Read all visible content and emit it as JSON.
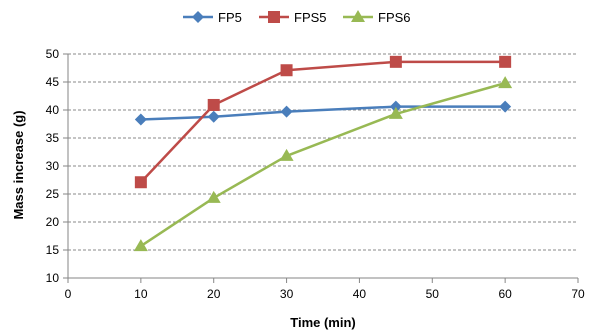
{
  "chart_data": {
    "type": "line",
    "title": "",
    "xlabel": "Time (min)",
    "ylabel": "Mass increase (g)",
    "xlim": [
      0,
      70
    ],
    "ylim": [
      10,
      50
    ],
    "xticks": [
      0,
      10,
      20,
      30,
      40,
      50,
      60,
      70
    ],
    "yticks": [
      10,
      15,
      20,
      25,
      30,
      35,
      40,
      45,
      50
    ],
    "grid": "horizontal-dashed",
    "legend_position": "top",
    "series": [
      {
        "name": "FP5",
        "color": "#4a7ebb",
        "marker": "diamond",
        "x": [
          10,
          20,
          30,
          45,
          60
        ],
        "y": [
          38.3,
          38.8,
          39.7,
          40.6,
          40.6
        ]
      },
      {
        "name": "FPS5",
        "color": "#be4b48",
        "marker": "square",
        "x": [
          10,
          20,
          30,
          45,
          60
        ],
        "y": [
          27.1,
          40.9,
          47.1,
          48.6,
          48.6
        ]
      },
      {
        "name": "FPS6",
        "color": "#98b954",
        "marker": "triangle",
        "x": [
          10,
          20,
          30,
          45,
          60
        ],
        "y": [
          15.7,
          24.3,
          31.8,
          39.3,
          44.8
        ]
      }
    ]
  }
}
